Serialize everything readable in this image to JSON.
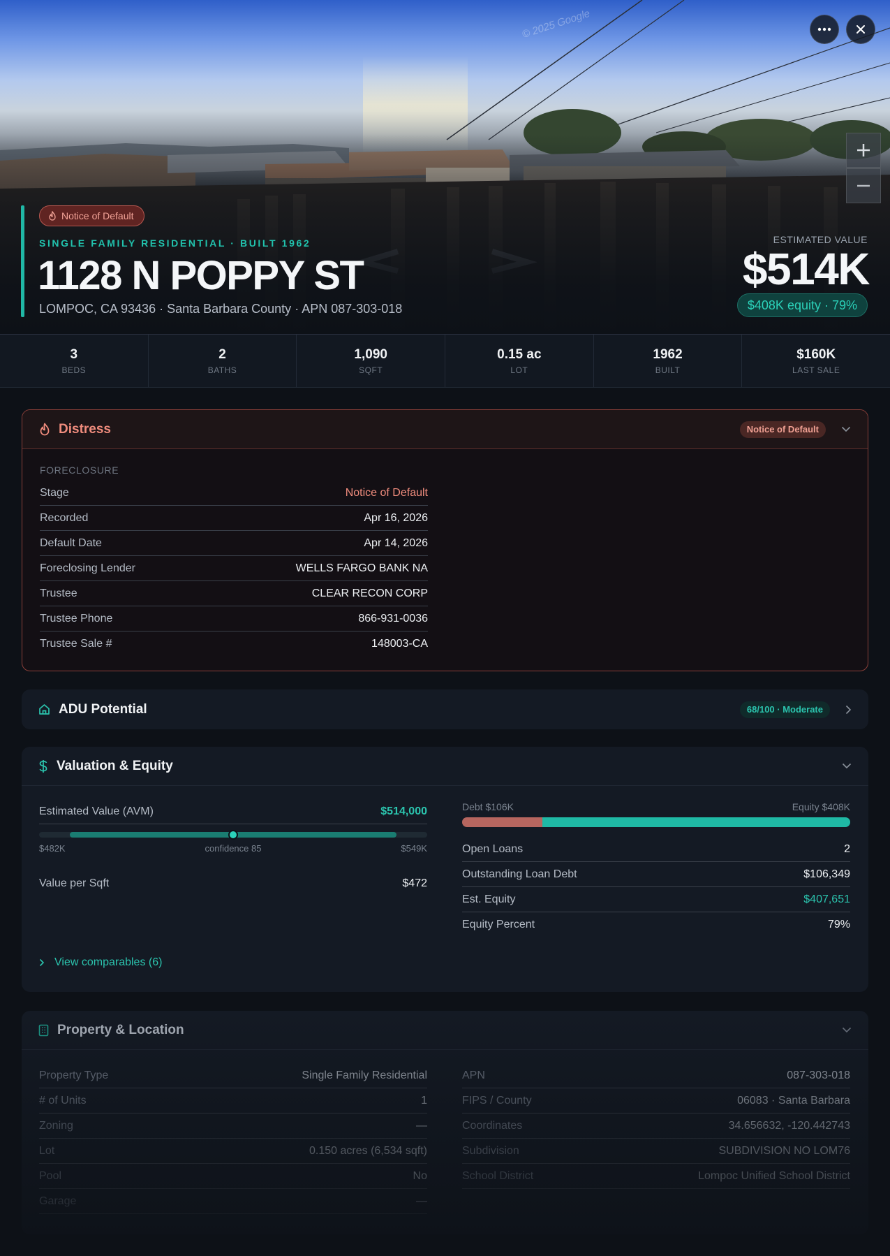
{
  "hero": {
    "watermark": "© 2025 Google",
    "badge": "Notice of Default",
    "subtitle": "SINGLE FAMILY RESIDENTIAL · BUILT 1962",
    "title": "1128 N POPPY ST",
    "address": "LOMPOC, CA 93436 · Santa Barbara County · APN 087-303-018",
    "estimated_label": "ESTIMATED VALUE",
    "estimated_value": "$514K",
    "equity_pill": "$408K equity · 79%"
  },
  "stats": [
    {
      "value": "3",
      "label": "BEDS"
    },
    {
      "value": "2",
      "label": "BATHS"
    },
    {
      "value": "1,090",
      "label": "SQFT"
    },
    {
      "value": "0.15 ac",
      "label": "LOT"
    },
    {
      "value": "1962",
      "label": "BUILT"
    },
    {
      "value": "$160K",
      "label": "LAST SALE"
    }
  ],
  "distress": {
    "title": "Distress",
    "badge": "Notice of Default",
    "section": "FORECLOSURE",
    "rows": [
      {
        "k": "Stage",
        "v": "Notice of Default"
      },
      {
        "k": "Recorded",
        "v": "Apr 16, 2026"
      },
      {
        "k": "Default Date",
        "v": "Apr 14, 2026"
      },
      {
        "k": "Foreclosing Lender",
        "v": "WELLS FARGO BANK NA"
      },
      {
        "k": "Trustee",
        "v": "CLEAR RECON CORP"
      },
      {
        "k": "Trustee Phone",
        "v": "866-931-0036"
      },
      {
        "k": "Trustee Sale #",
        "v": "148003-CA"
      }
    ]
  },
  "adu": {
    "title": "ADU Potential",
    "badge": "68/100 · Moderate"
  },
  "valuation": {
    "title": "Valuation & Equity",
    "avm_label": "Estimated Value (AVM)",
    "avm_value": "$514,000",
    "range_low": "$482K",
    "range_mid": "confidence 85",
    "range_high": "$549K",
    "range_fill_start": 0.08,
    "range_fill_end": 0.92,
    "range_marker": 0.5,
    "ppsf_label": "Value per Sqft",
    "ppsf_value": "$472",
    "debt_label": "Debt $106K",
    "equity_label": "Equity $408K",
    "debt_fraction": 0.207,
    "rows": [
      {
        "k": "Open Loans",
        "v": "2"
      },
      {
        "k": "Outstanding Loan Debt",
        "v": "$106,349"
      },
      {
        "k": "Est. Equity",
        "v": "$407,651"
      },
      {
        "k": "Equity Percent",
        "v": "79%"
      }
    ],
    "comparables": "View comparables (6)"
  },
  "property": {
    "title": "Property & Location",
    "left": [
      {
        "k": "Property Type",
        "v": "Single Family Residential"
      },
      {
        "k": "# of Units",
        "v": "1"
      },
      {
        "k": "Zoning",
        "v": "—"
      },
      {
        "k": "Lot",
        "v": "0.150 acres (6,534 sqft)"
      },
      {
        "k": "Pool",
        "v": "No"
      },
      {
        "k": "Garage",
        "v": "—"
      }
    ],
    "right": [
      {
        "k": "APN",
        "v": "087-303-018"
      },
      {
        "k": "FIPS / County",
        "v": "06083 · Santa Barbara"
      },
      {
        "k": "Coordinates",
        "v": "34.656632, -120.442743"
      },
      {
        "k": "Subdivision",
        "v": "SUBDIVISION NO LOM76"
      },
      {
        "k": "School District",
        "v": "Lompoc Unified School District"
      }
    ]
  },
  "colors": {
    "accent": "#20b8a6",
    "danger": "#f08c7d",
    "bg": "#0d1117"
  }
}
